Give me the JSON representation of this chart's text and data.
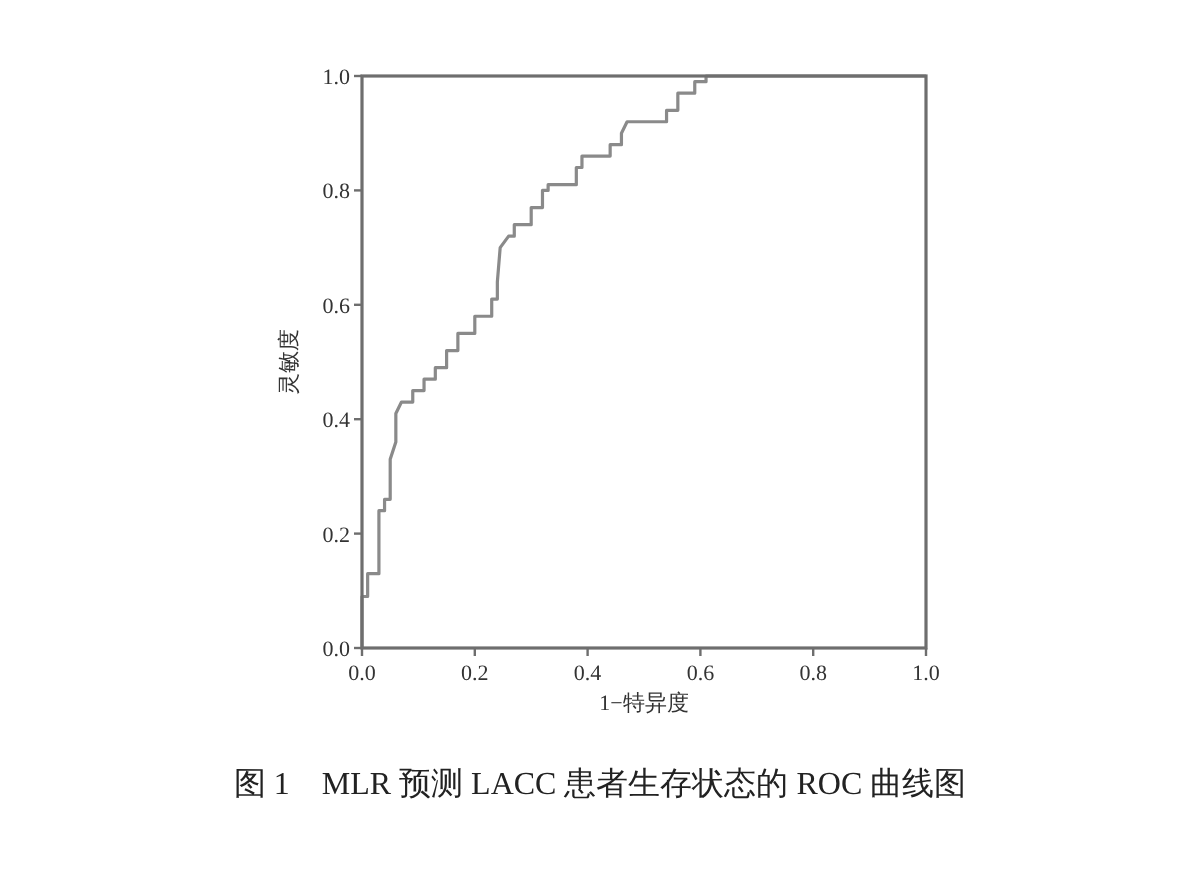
{
  "chart_data": {
    "type": "line",
    "xlabel": "1−特异度",
    "ylabel": "灵敏度",
    "annotations": [
      "图 1　MLR 预测 LACC 患者生存状态的 ROC 曲线图"
    ],
    "xlim": [
      0,
      1
    ],
    "ylim": [
      0,
      1
    ],
    "xticks": [
      {
        "value": 0,
        "label": "0.0"
      },
      {
        "value": 0.2,
        "label": "0.2"
      },
      {
        "value": 0.4,
        "label": "0.4"
      },
      {
        "value": 0.6,
        "label": "0.6"
      },
      {
        "value": 0.8,
        "label": "0.8"
      },
      {
        "value": 1,
        "label": "1.0"
      }
    ],
    "yticks": [
      {
        "value": 0,
        "label": "0.0"
      },
      {
        "value": 0.2,
        "label": "0.2"
      },
      {
        "value": 0.4,
        "label": "0.4"
      },
      {
        "value": 0.6,
        "label": "0.6"
      },
      {
        "value": 0.8,
        "label": "0.8"
      },
      {
        "value": 1,
        "label": "1.0"
      }
    ],
    "series": [
      {
        "color": "#8a8a8a",
        "x": [
          0,
          0,
          0.01,
          0.01,
          0.03,
          0.03,
          0.04,
          0.04,
          0.05,
          0.05,
          0.06,
          0.06,
          0.07,
          0.09,
          0.09,
          0.11,
          0.11,
          0.13,
          0.13,
          0.15,
          0.15,
          0.17,
          0.17,
          0.2,
          0.2,
          0.23,
          0.23,
          0.24,
          0.24,
          0.245,
          0.26,
          0.27,
          0.27,
          0.3,
          0.3,
          0.32,
          0.32,
          0.33,
          0.33,
          0.38,
          0.38,
          0.39,
          0.39,
          0.44,
          0.44,
          0.46,
          0.46,
          0.47,
          0.54,
          0.54,
          0.56,
          0.56,
          0.59,
          0.59,
          0.61,
          0.61,
          1
        ],
        "values": [
          0,
          0.09,
          0.09,
          0.13,
          0.13,
          0.24,
          0.24,
          0.26,
          0.26,
          0.33,
          0.36,
          0.41,
          0.43,
          0.43,
          0.45,
          0.45,
          0.47,
          0.47,
          0.49,
          0.49,
          0.52,
          0.52,
          0.55,
          0.55,
          0.58,
          0.58,
          0.61,
          0.61,
          0.64,
          0.7,
          0.72,
          0.72,
          0.74,
          0.74,
          0.77,
          0.77,
          0.8,
          0.8,
          0.81,
          0.81,
          0.84,
          0.84,
          0.86,
          0.86,
          0.88,
          0.88,
          0.9,
          0.92,
          0.92,
          0.94,
          0.94,
          0.97,
          0.97,
          0.99,
          0.99,
          1,
          1
        ]
      }
    ]
  }
}
